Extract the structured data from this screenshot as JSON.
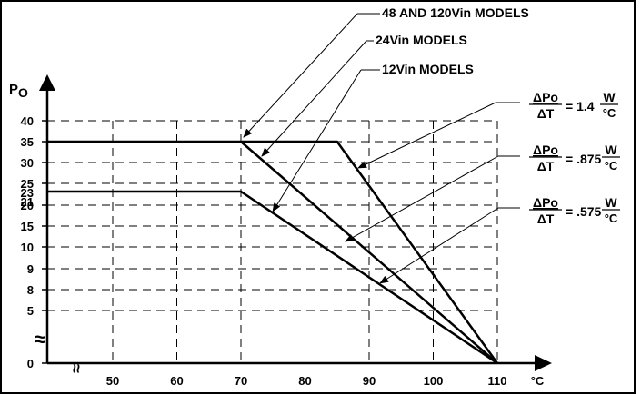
{
  "chart_data": {
    "type": "line",
    "ylabel_main": "P",
    "ylabel_sub": "O",
    "xunit": "°C",
    "x_ticks": [
      {
        "label": "50",
        "value": 50
      },
      {
        "label": "60",
        "value": 60
      },
      {
        "label": "70",
        "value": 70
      },
      {
        "label": "80",
        "value": 80
      },
      {
        "label": "90",
        "value": 90
      },
      {
        "label": "100",
        "value": 100
      },
      {
        "label": "110",
        "value": 110
      }
    ],
    "y_ticks": [
      "0",
      "5",
      "8",
      "9",
      "10",
      "15",
      "20",
      "21",
      "23",
      "25",
      "30",
      "35",
      "40"
    ],
    "series": [
      {
        "name": "48 AND 120Vin MODELS",
        "points": [
          [
            40,
            35
          ],
          [
            85,
            35
          ],
          [
            110,
            0
          ]
        ]
      },
      {
        "name": "24Vin MODELS",
        "points": [
          [
            70,
            35
          ],
          [
            110,
            0
          ]
        ]
      },
      {
        "name": "12Vin MODELS",
        "points": [
          [
            40,
            23
          ],
          [
            70,
            23
          ],
          [
            110,
            0
          ]
        ]
      }
    ],
    "derating_labels": [
      {
        "top": "ΔPo",
        "bottom": "ΔT",
        "value": "= 1.4",
        "unit_top": "W",
        "unit_bottom": "°C"
      },
      {
        "top": "ΔPo",
        "bottom": "ΔT",
        "value": "= .875",
        "unit_top": "W",
        "unit_bottom": "°C"
      },
      {
        "top": "ΔPo",
        "bottom": "ΔT",
        "value": "= .575",
        "unit_top": "W",
        "unit_bottom": "°C"
      }
    ],
    "axis_break_symbol": "≈",
    "grid": "dashed"
  }
}
